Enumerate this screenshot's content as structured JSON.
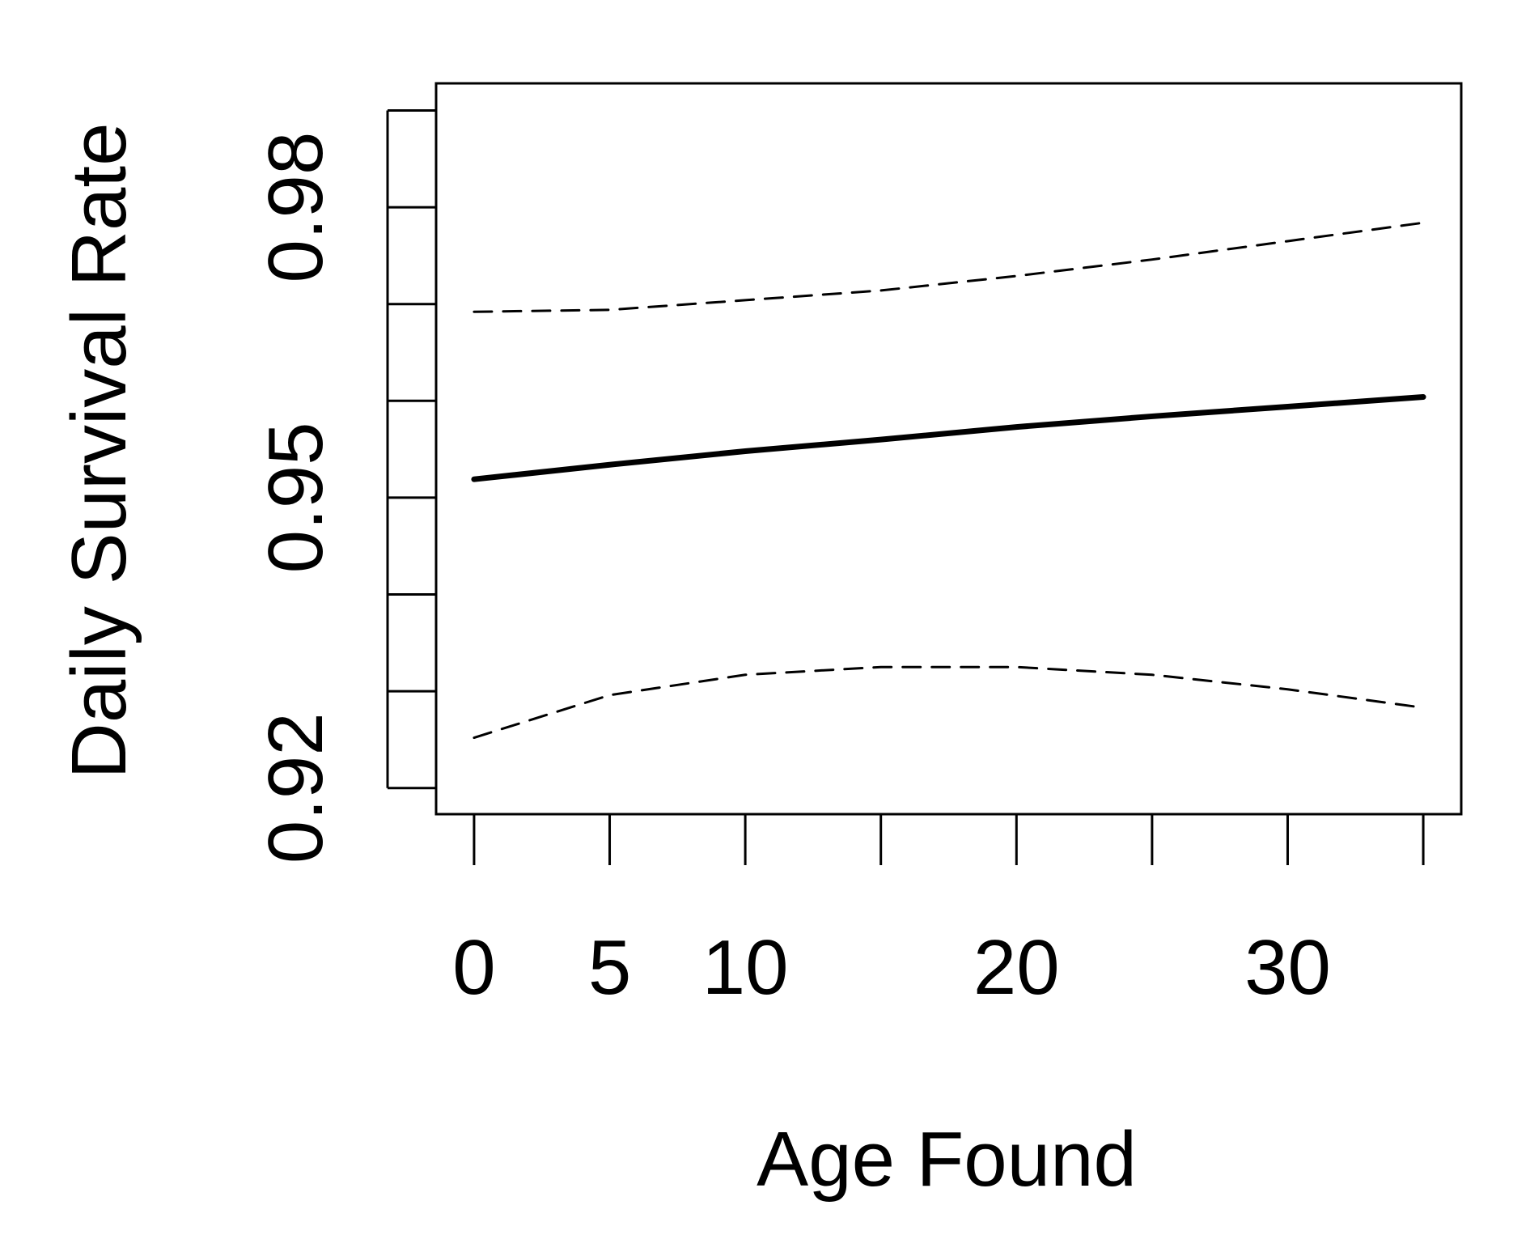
{
  "chart_data": {
    "type": "line",
    "xlabel": "Age Found",
    "ylabel": "Daily Survival Rate",
    "x": [
      0,
      5,
      10,
      15,
      20,
      25,
      30,
      35
    ],
    "series": [
      {
        "color": "#000000",
        "dash": "solid",
        "width": 7,
        "values": [
          0.9519,
          0.9534,
          0.9548,
          0.956,
          0.9573,
          0.9584,
          0.9594,
          0.9604
        ]
      },
      {
        "color": "#000000",
        "dash": "dashed",
        "width": 3,
        "values": [
          0.9692,
          0.9694,
          0.9704,
          0.9714,
          0.9729,
          0.9746,
          0.9765,
          0.9784
        ]
      },
      {
        "color": "#000000",
        "dash": "dashed",
        "width": 3,
        "values": [
          0.9252,
          0.9296,
          0.9317,
          0.9325,
          0.9325,
          0.9317,
          0.9302,
          0.9283
        ]
      }
    ],
    "xlim": [
      -1.4,
      36.4
    ],
    "ylim": [
      0.9173,
      0.9928
    ],
    "xticks": [
      0,
      5,
      10,
      {
        "value": 15,
        "label": null
      },
      20,
      {
        "value": 25,
        "label": null
      },
      30,
      {
        "value": 35,
        "label": null
      }
    ],
    "yticks": [
      0.92,
      {
        "value": 0.93,
        "label": null
      },
      {
        "value": 0.94,
        "label": null
      },
      0.95,
      {
        "value": 0.96,
        "label": null
      },
      {
        "value": 0.97,
        "label": null
      },
      0.98,
      {
        "value": 0.99,
        "label": null
      }
    ],
    "grid": false
  }
}
